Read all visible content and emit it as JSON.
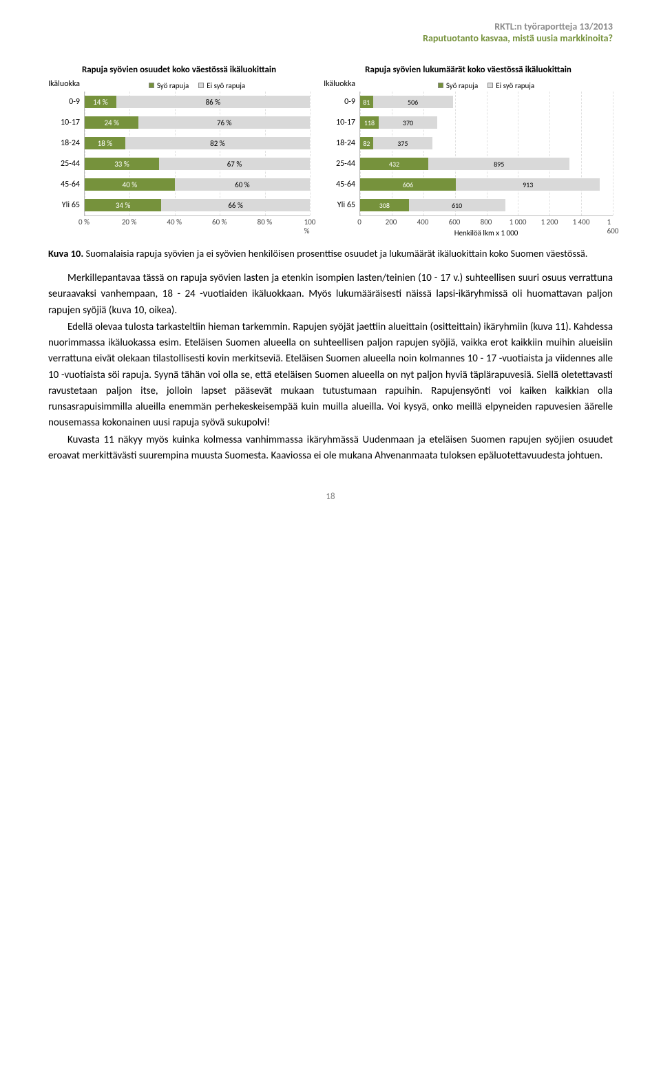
{
  "header": {
    "line1": "RKTL:n työraportteja 13/2013",
    "line2": "Raputuotanto kasvaa, mistä uusia markkinoita?"
  },
  "colors": {
    "series_eat": "#76923c",
    "series_not": "#d9d9d9",
    "grid": "#e0e0e0",
    "axis": "#bbbbbb",
    "text": "#000000"
  },
  "legend": {
    "series1": "Syö rapuja",
    "series2": "Ei syö rapuja"
  },
  "axis_title": "Ikäluokka",
  "categories": [
    "0-9",
    "10-17",
    "18-24",
    "25-44",
    "45-64",
    "Yli 65"
  ],
  "chart_left": {
    "title": "Rapuja syövien osuudet koko väestössä ikäluokittain",
    "type": "stacked-bar-horizontal-percent",
    "xticks": [
      "0 %",
      "20 %",
      "40 %",
      "60 %",
      "80 %",
      "100 %"
    ],
    "xstep": 20,
    "rows": [
      {
        "eat": 14,
        "not": 86,
        "eat_label": "14 %",
        "not_label": "86 %"
      },
      {
        "eat": 24,
        "not": 76,
        "eat_label": "24 %",
        "not_label": "76 %"
      },
      {
        "eat": 18,
        "not": 82,
        "eat_label": "18 %",
        "not_label": "82 %"
      },
      {
        "eat": 33,
        "not": 67,
        "eat_label": "33 %",
        "not_label": "67 %"
      },
      {
        "eat": 40,
        "not": 60,
        "eat_label": "40 %",
        "not_label": "60 %"
      },
      {
        "eat": 34,
        "not": 66,
        "eat_label": "34 %",
        "not_label": "66 %"
      }
    ]
  },
  "chart_right": {
    "title": "Rapuja syövien lukumäärät koko väestössä ikäluokittain",
    "type": "stacked-bar-horizontal-absolute",
    "xmax": 1600,
    "xticks": [
      "0",
      "200",
      "400",
      "600",
      "800",
      "1 000",
      "1 200",
      "1 400",
      "1 600"
    ],
    "xstep": 200,
    "xaxis_title": "Henkilöä lkm  x 1 000",
    "rows": [
      {
        "eat": 81,
        "not": 506,
        "eat_label": "81",
        "not_label": "506"
      },
      {
        "eat": 118,
        "not": 370,
        "eat_label": "118",
        "not_label": "370"
      },
      {
        "eat": 82,
        "not": 375,
        "eat_label": "82",
        "not_label": "375"
      },
      {
        "eat": 432,
        "not": 895,
        "eat_label": "432",
        "not_label": "895"
      },
      {
        "eat": 606,
        "not": 913,
        "eat_label": "606",
        "not_label": "913"
      },
      {
        "eat": 308,
        "not": 610,
        "eat_label": "308",
        "not_label": "610"
      }
    ]
  },
  "figure_caption": {
    "label": "Kuva 10.",
    "text": " Suomalaisia rapuja syövien ja ei syövien henkilöisen prosenttise osuudet ja lukumäärät ikäluokittain koko Suomen väestössä."
  },
  "body_paragraphs": [
    "Merkillepantavaa tässä on rapuja syövien lasten ja etenkin isompien lasten/teinien (10 - 17 v.) suhteellisen suuri osuus verrattuna seuraavaksi vanhempaan, 18 - 24 -vuotiaiden ikäluokkaan. Myös lukumääräisesti näissä lapsi-ikäryhmissä oli huomattavan paljon rapujen syöjiä (kuva 10, oikea).",
    "Edellä olevaa tulosta tarkasteltiin hieman tarkemmin. Rapujen syöjät jaettiin alueittain (ositteittain) ikäryhmiin (kuva 11). Kahdessa nuorimmassa ikäluokassa esim. Eteläisen Suomen alueella on suhteellisen paljon rapujen syöjiä, vaikka erot kaikkiin muihin alueisiin verrattuna eivät olekaan tilastollisesti kovin merkitseviä. Eteläisen Suomen alueella noin kolmannes 10 - 17 -vuotiaista ja viidennes alle 10 -vuotiaista söi rapuja. Syynä tähän voi olla se, että eteläisen Suomen alueella on nyt paljon hyviä täplärapuvesiä. Siellä oletettavasti ravustetaan paljon itse, jolloin lapset pääsevät mukaan tutustumaan rapuihin. Rapujensyönti voi kaiken kaikkian olla runsasrapuisimmilla alueilla enemmän perhekeskeisempää kuin muilla alueilla. Voi kysyä, onko meillä elpyneiden rapuvesien äärelle nousemassa kokonainen uusi rapuja syövä sukupolvi!",
    "Kuvasta 11 näkyy myös kuinka kolmessa vanhimmassa ikäryhmässä Uudenmaan ja eteläisen Suomen rapujen syöjien osuudet eroavat merkittävästi suurempina muusta Suomesta. Kaaviossa ei ole mukana Ahvenanmaata tuloksen epäluotettavuudesta johtuen."
  ],
  "page_number": "18"
}
